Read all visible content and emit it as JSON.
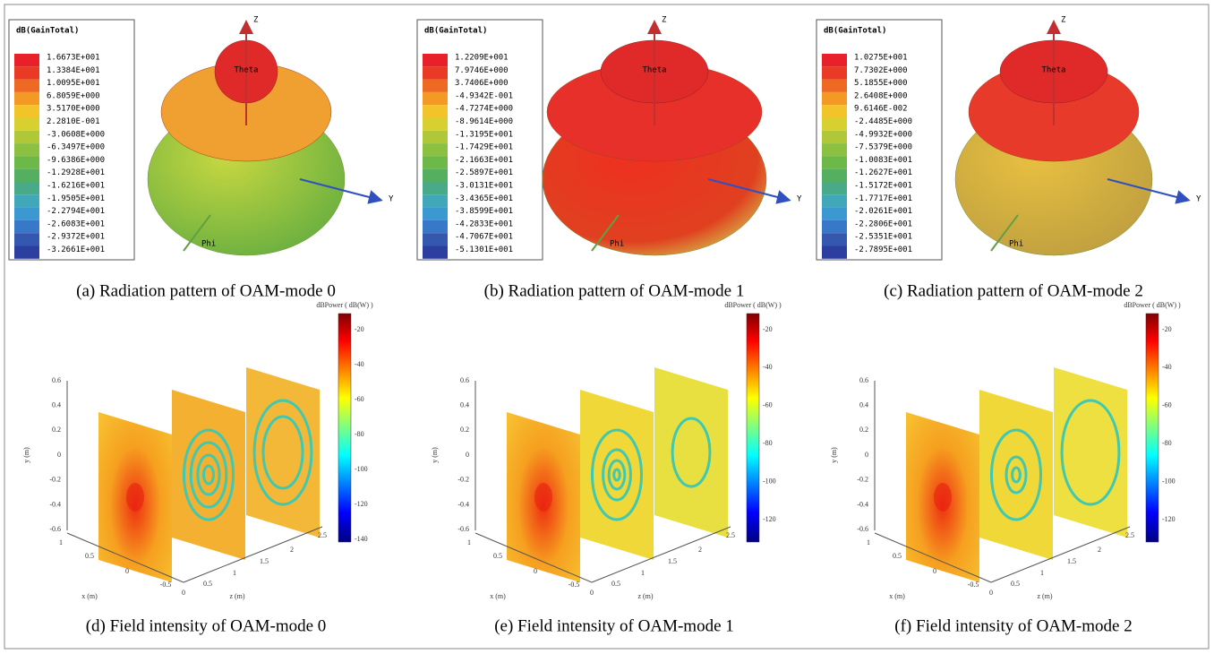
{
  "panels_top": [
    {
      "legend_title": "dB(GainTotal)",
      "legend_values": [
        "1.6673E+001",
        "1.3384E+001",
        "1.0095E+001",
        "6.8059E+000",
        "3.5170E+000",
        "2.2810E-001",
        "-3.0608E+000",
        "-6.3497E+000",
        "-9.6386E+000",
        "-1.2928E+001",
        "-1.6216E+001",
        "-1.9505E+001",
        "-2.2794E+001",
        "-2.6083E+001",
        "-2.9372E+001",
        "-3.2661E+001"
      ],
      "axis_z": "Z",
      "axis_theta": "Theta",
      "axis_y": "Y",
      "axis_phi": "Phi",
      "caption": "(a) Radiation pattern of OAM-mode 0"
    },
    {
      "legend_title": "dB(GainTotal)",
      "legend_values": [
        "1.2209E+001",
        "7.9746E+000",
        "3.7406E+000",
        "-4.9342E-001",
        "-4.7274E+000",
        "-8.9614E+000",
        "-1.3195E+001",
        "-1.7429E+001",
        "-2.1663E+001",
        "-2.5897E+001",
        "-3.0131E+001",
        "-3.4365E+001",
        "-3.8599E+001",
        "-4.2833E+001",
        "-4.7067E+001",
        "-5.1301E+001"
      ],
      "axis_z": "Z",
      "axis_theta": "Theta",
      "axis_y": "Y",
      "axis_phi": "Phi",
      "caption": "(b) Radiation pattern of OAM-mode 1"
    },
    {
      "legend_title": "dB(GainTotal)",
      "legend_values": [
        "1.0275E+001",
        "7.7302E+000",
        "5.1855E+000",
        "2.6408E+000",
        "9.6146E-002",
        "-2.4485E+000",
        "-4.9932E+000",
        "-7.5379E+000",
        "-1.0083E+001",
        "-1.2627E+001",
        "-1.5172E+001",
        "-1.7717E+001",
        "-2.0261E+001",
        "-2.2806E+001",
        "-2.5351E+001",
        "-2.7895E+001"
      ],
      "axis_z": "Z",
      "axis_theta": "Theta",
      "axis_y": "Y",
      "axis_phi": "Phi",
      "caption": "(c) Radiation pattern of OAM-mode 2"
    }
  ],
  "panels_bottom": [
    {
      "colorbar_title": "dBPower ( dB(W) )",
      "colorbar_ticks": [
        "-20",
        "-40",
        "-60",
        "-80",
        "-100",
        "-120",
        "-140"
      ],
      "y_label": "y (m)",
      "y_ticks": [
        "0.6",
        "0.4",
        "0.2",
        "0",
        "-0.2",
        "-0.4",
        "-0.6"
      ],
      "x_label": "x (m)",
      "x_ticks": [
        "1",
        "0.5",
        "0",
        "-0.5"
      ],
      "z_label": "z (m)",
      "z_ticks": [
        "0",
        "0.5",
        "1",
        "1.5",
        "2",
        "2.5"
      ],
      "caption": "(d) Field intensity of OAM-mode 0"
    },
    {
      "colorbar_title": "dBPower ( dB(W) )",
      "colorbar_ticks": [
        "-20",
        "-40",
        "-60",
        "-80",
        "-100",
        "-120"
      ],
      "y_label": "y (m)",
      "y_ticks": [
        "0.6",
        "0.4",
        "0.2",
        "0",
        "-0.2",
        "-0.4",
        "-0.6"
      ],
      "x_label": "x (m)",
      "x_ticks": [
        "1",
        "0.5",
        "0",
        "-0.5"
      ],
      "z_label": "z (m)",
      "z_ticks": [
        "0",
        "0.5",
        "1",
        "1.5",
        "2",
        "2.5"
      ],
      "caption": "(e) Field intensity of OAM-mode 1"
    },
    {
      "colorbar_title": "dBPower ( dB(W) )",
      "colorbar_ticks": [
        "-20",
        "-40",
        "-60",
        "-80",
        "-100",
        "-120"
      ],
      "y_label": "y (m)",
      "y_ticks": [
        "0.6",
        "0.4",
        "0.2",
        "0",
        "-0.2",
        "-0.4",
        "-0.6"
      ],
      "x_label": "x (m)",
      "x_ticks": [
        "1",
        "0.5",
        "0",
        "-0.5"
      ],
      "z_label": "z (m)",
      "z_ticks": [
        "0",
        "0.5",
        "1",
        "1.5",
        "2",
        "2.5"
      ],
      "caption": "(f) Field intensity of OAM-mode 2"
    }
  ]
}
